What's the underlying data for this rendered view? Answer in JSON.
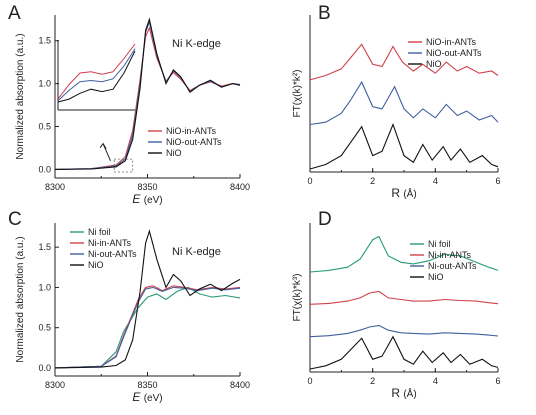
{
  "chart_data": [
    {
      "panel": "A",
      "type": "line",
      "annotation": "Ni K-edge",
      "xlabel_italic": "E",
      "xlabel_unit": "(eV)",
      "ylabel": "Normalized absorption (a.u.)",
      "xlim": [
        8300,
        8400
      ],
      "ylim": [
        -0.1,
        1.8
      ],
      "xticks": [
        "8300",
        "8350",
        "8400"
      ],
      "yticks": [
        "0.0",
        "0.5",
        "1.0",
        "1.5"
      ],
      "legend_position": "lower-right",
      "series": [
        {
          "name": "NiO-in-ANTs",
          "color": "#d0404a",
          "x": [
            8300,
            8320,
            8333,
            8338,
            8342,
            8346,
            8349,
            8351,
            8355,
            8360,
            8364,
            8368,
            8373,
            8378,
            8384,
            8390,
            8396,
            8400
          ],
          "y": [
            0.0,
            0.01,
            0.05,
            0.15,
            0.45,
            1.05,
            1.55,
            1.65,
            1.3,
            1.03,
            1.13,
            1.05,
            0.92,
            0.98,
            1.02,
            0.97,
            1.0,
            0.99
          ]
        },
        {
          "name": "NiO-out-ANTs",
          "color": "#4060a0",
          "x": [
            8300,
            8320,
            8333,
            8338,
            8342,
            8346,
            8349,
            8351,
            8355,
            8360,
            8364,
            8368,
            8373,
            8378,
            8384,
            8390,
            8396,
            8400
          ],
          "y": [
            0.0,
            0.01,
            0.04,
            0.12,
            0.4,
            1.0,
            1.6,
            1.72,
            1.33,
            1.02,
            1.15,
            1.07,
            0.91,
            0.98,
            1.03,
            0.96,
            1.0,
            0.99
          ]
        },
        {
          "name": "NiO",
          "color": "#111111",
          "x": [
            8300,
            8320,
            8333,
            8338,
            8342,
            8346,
            8349,
            8351,
            8355,
            8360,
            8364,
            8368,
            8373,
            8378,
            8384,
            8390,
            8396,
            8400
          ],
          "y": [
            0.0,
            0.005,
            0.03,
            0.1,
            0.35,
            0.95,
            1.62,
            1.75,
            1.35,
            1.0,
            1.16,
            1.08,
            0.9,
            0.98,
            1.04,
            0.96,
            1.0,
            0.98
          ]
        }
      ],
      "inset": {
        "series": [
          {
            "name": "NiO-in-ANTs",
            "color": "#d0404a",
            "y": [
              0.05,
              0.3,
              0.5,
              0.52,
              0.48,
              0.52,
              0.75,
              1.0
            ]
          },
          {
            "name": "NiO-out-ANTs",
            "color": "#4060a0",
            "y": [
              0.02,
              0.2,
              0.35,
              0.37,
              0.35,
              0.4,
              0.62,
              0.92
            ]
          },
          {
            "name": "NiO",
            "color": "#111111",
            "y": [
              0.0,
              0.05,
              0.15,
              0.22,
              0.18,
              0.22,
              0.5,
              0.88
            ]
          }
        ]
      }
    },
    {
      "panel": "B",
      "type": "line",
      "xlabel": "R",
      "xlabel_unit": "(Å)",
      "ylabel": "FT(χ(k)*k²)",
      "xlim": [
        0,
        6
      ],
      "xticks": [
        "0",
        "2",
        "4",
        "6"
      ],
      "legend_position": "top-right",
      "series": [
        {
          "name": "NiO-in-ANTs",
          "color": "#d0404a",
          "offset": 2.0,
          "x": [
            0,
            0.5,
            1.0,
            1.3,
            1.65,
            2.0,
            2.3,
            2.65,
            2.95,
            3.3,
            3.6,
            4.0,
            4.35,
            4.7,
            5.0,
            5.4,
            5.8,
            6.0
          ],
          "y": [
            0.0,
            0.1,
            0.25,
            0.5,
            0.8,
            0.35,
            0.3,
            0.75,
            0.4,
            0.2,
            0.35,
            0.15,
            0.4,
            0.2,
            0.3,
            0.15,
            0.2,
            0.1
          ]
        },
        {
          "name": "NiO-out-ANTs",
          "color": "#4060a0",
          "offset": 1.0,
          "x": [
            0,
            0.5,
            1.0,
            1.3,
            1.65,
            2.0,
            2.3,
            2.7,
            3.0,
            3.3,
            3.6,
            4.0,
            4.35,
            4.7,
            5.0,
            5.4,
            5.8,
            6.0
          ],
          "y": [
            0.0,
            0.05,
            0.25,
            0.55,
            0.95,
            0.4,
            0.35,
            0.85,
            0.35,
            0.15,
            0.35,
            0.15,
            0.45,
            0.2,
            0.3,
            0.1,
            0.2,
            0.05
          ]
        },
        {
          "name": "NiO",
          "color": "#111111",
          "offset": 0.0,
          "x": [
            0,
            0.5,
            1.0,
            1.3,
            1.65,
            2.0,
            2.3,
            2.65,
            3.0,
            3.3,
            3.6,
            3.9,
            4.25,
            4.5,
            4.8,
            5.1,
            5.5,
            5.8,
            6.0
          ],
          "y": [
            0.0,
            0.1,
            0.3,
            0.6,
            0.95,
            0.3,
            0.4,
            1.0,
            0.3,
            0.15,
            0.55,
            0.2,
            0.5,
            0.2,
            0.45,
            0.15,
            0.3,
            0.1,
            0.05
          ]
        }
      ]
    },
    {
      "panel": "C",
      "type": "line",
      "annotation": "Ni K-edge",
      "xlabel_italic": "E",
      "xlabel_unit": "(eV)",
      "ylabel": "Normalized absorption (a.u.)",
      "xlim": [
        8300,
        8400
      ],
      "ylim": [
        -0.1,
        1.8
      ],
      "xticks": [
        "8300",
        "8350",
        "8400"
      ],
      "yticks": [
        "0.0",
        "0.5",
        "1.0",
        "1.5"
      ],
      "legend_position": "top-left",
      "series": [
        {
          "name": "Ni foil",
          "color": "#2a9a7a",
          "x": [
            8300,
            8325,
            8333,
            8337,
            8341,
            8345,
            8350,
            8355,
            8360,
            8366,
            8372,
            8378,
            8385,
            8392,
            8400
          ],
          "y": [
            0.0,
            0.02,
            0.2,
            0.45,
            0.6,
            0.75,
            0.88,
            0.92,
            0.85,
            0.95,
            1.0,
            0.92,
            0.88,
            0.9,
            0.87
          ]
        },
        {
          "name": "Ni-in-ANTs",
          "color": "#d0404a",
          "x": [
            8300,
            8325,
            8333,
            8337,
            8341,
            8345,
            8349,
            8353,
            8358,
            8364,
            8370,
            8377,
            8385,
            8392,
            8400
          ],
          "y": [
            0.0,
            0.02,
            0.15,
            0.4,
            0.62,
            0.85,
            1.0,
            1.02,
            0.96,
            1.02,
            1.0,
            0.97,
            1.0,
            0.98,
            1.0
          ]
        },
        {
          "name": "Ni-out-ANTs",
          "color": "#4060a0",
          "x": [
            8300,
            8325,
            8333,
            8337,
            8341,
            8345,
            8349,
            8353,
            8358,
            8364,
            8370,
            8377,
            8385,
            8392,
            8400
          ],
          "y": [
            0.0,
            0.02,
            0.14,
            0.38,
            0.6,
            0.82,
            0.98,
            1.0,
            0.95,
            1.0,
            0.99,
            0.96,
            0.99,
            0.97,
            0.99
          ]
        },
        {
          "name": "NiO",
          "color": "#111111",
          "x": [
            8300,
            8325,
            8333,
            8338,
            8342,
            8346,
            8349,
            8351,
            8355,
            8360,
            8364,
            8368,
            8373,
            8378,
            8384,
            8390,
            8396,
            8400
          ],
          "y": [
            0.0,
            0.01,
            0.03,
            0.1,
            0.35,
            0.95,
            1.55,
            1.7,
            1.35,
            1.0,
            1.16,
            1.08,
            0.9,
            0.98,
            1.04,
            0.96,
            1.05,
            1.1
          ]
        }
      ]
    },
    {
      "panel": "D",
      "type": "line",
      "xlabel": "R",
      "xlabel_unit": "(Å)",
      "ylabel": "FT(χ(k)*k³)",
      "xlim": [
        0,
        6
      ],
      "xticks": [
        "0",
        "2",
        "4",
        "6"
      ],
      "legend_position": "top-right",
      "series": [
        {
          "name": "Ni foil",
          "color": "#2a9a7a",
          "offset": 3.0,
          "x": [
            0,
            0.6,
            1.2,
            1.6,
            2.0,
            2.2,
            2.5,
            2.9,
            3.3,
            3.8,
            4.3,
            4.8,
            5.3,
            5.7,
            6.0
          ],
          "y": [
            0.0,
            0.05,
            0.15,
            0.4,
            1.0,
            1.1,
            0.5,
            0.3,
            0.25,
            0.35,
            0.55,
            0.5,
            0.3,
            0.15,
            0.05
          ]
        },
        {
          "name": "Ni-in-ANTs",
          "color": "#d0404a",
          "offset": 2.0,
          "x": [
            0,
            0.6,
            1.2,
            1.6,
            1.9,
            2.2,
            2.5,
            2.9,
            3.3,
            3.8,
            4.3,
            4.8,
            5.3,
            5.7,
            6.0
          ],
          "y": [
            0.0,
            0.03,
            0.1,
            0.2,
            0.35,
            0.4,
            0.2,
            0.15,
            0.1,
            0.1,
            0.15,
            0.12,
            0.1,
            0.05,
            0.02
          ]
        },
        {
          "name": "Ni-out-ANTs",
          "color": "#4060a0",
          "offset": 1.0,
          "x": [
            0,
            0.6,
            1.2,
            1.6,
            1.9,
            2.2,
            2.5,
            2.9,
            3.3,
            3.8,
            4.3,
            4.8,
            5.3,
            5.7,
            6.0
          ],
          "y": [
            0.0,
            0.03,
            0.1,
            0.2,
            0.3,
            0.35,
            0.2,
            0.12,
            0.1,
            0.08,
            0.12,
            0.1,
            0.08,
            0.05,
            0.02
          ]
        },
        {
          "name": "NiO",
          "color": "#111111",
          "offset": 0.0,
          "x": [
            0,
            0.5,
            1.0,
            1.3,
            1.65,
            2.0,
            2.3,
            2.65,
            3.0,
            3.3,
            3.6,
            3.9,
            4.25,
            4.5,
            4.8,
            5.1,
            5.5,
            5.8,
            6.0
          ],
          "y": [
            0.0,
            0.1,
            0.3,
            0.6,
            0.95,
            0.3,
            0.4,
            1.0,
            0.3,
            0.15,
            0.55,
            0.2,
            0.5,
            0.2,
            0.45,
            0.15,
            0.3,
            0.1,
            0.05
          ]
        }
      ]
    }
  ]
}
